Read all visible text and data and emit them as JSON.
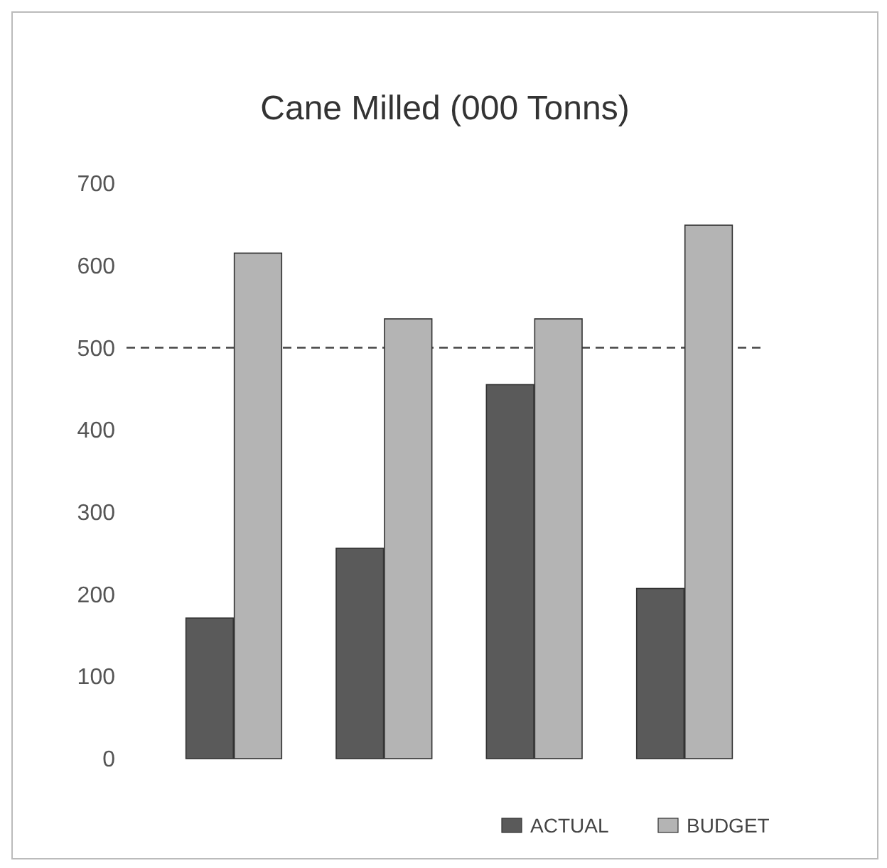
{
  "chart_data": {
    "type": "bar",
    "title": "Cane Milled (000 Tonns)",
    "categories": [
      null,
      null,
      null,
      null
    ],
    "series": [
      {
        "name": "ACTUAL",
        "color": "#5a5a5a",
        "values": [
          171,
          256,
          455,
          207
        ]
      },
      {
        "name": "BUDGET",
        "color": "#b4b4b4",
        "values": [
          615,
          535,
          535,
          649
        ]
      }
    ],
    "ylim": [
      0,
      700
    ],
    "yticks": [
      0,
      100,
      200,
      300,
      400,
      500,
      600,
      700
    ],
    "ref_lines": [
      {
        "axis": "y",
        "value": 500,
        "color": "#444444",
        "line_style": "dashed"
      }
    ],
    "legend": "bottom",
    "grid": false
  }
}
